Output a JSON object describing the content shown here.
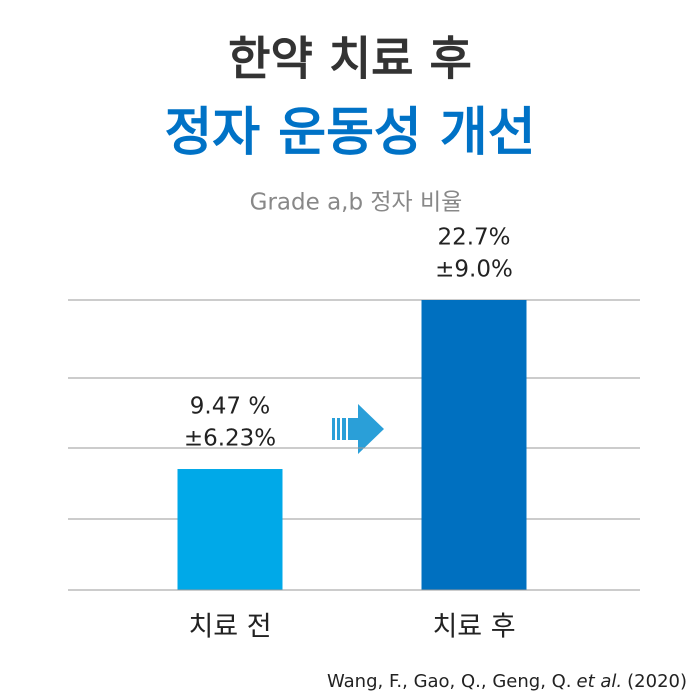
{
  "chart_data": {
    "type": "bar",
    "title": "한약 치료 후",
    "subtitle": "정자 운동성 개선",
    "y_label": "Grade a,b 정자 비율",
    "categories": [
      "치료 전",
      "치료 후"
    ],
    "values": [
      9.47,
      22.7
    ],
    "value_labels": [
      "9.47 %",
      "22.7%"
    ],
    "errors": [
      6.23,
      9.0
    ],
    "error_labels": [
      "±6.23%",
      "±9.0%"
    ],
    "colors": [
      "#00a9e8",
      "#0070c0"
    ],
    "ylim": [
      0,
      22.7
    ],
    "grid": true,
    "source": {
      "authors": "Wang, F., Gao, Q., Geng, Q.",
      "etal": "et al.",
      "year": "(2020)"
    }
  }
}
